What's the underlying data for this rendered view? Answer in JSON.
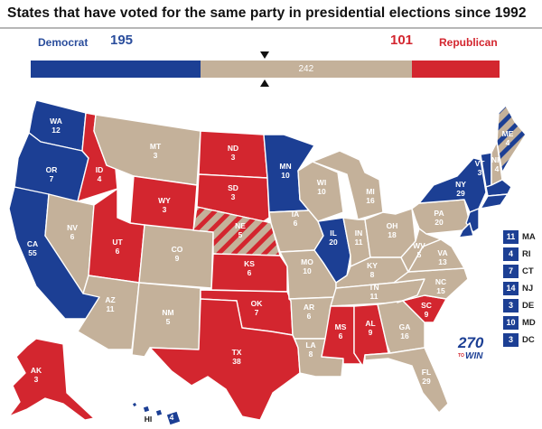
{
  "title": "States that have voted for the same party in presidential elections since 1992",
  "colors": {
    "democrat": "#1c3f94",
    "republican": "#d3262f",
    "neutral": "#c4b19a"
  },
  "summary": {
    "democrat_label": "Democrat",
    "democrat_votes": "195",
    "republican_votes": "101",
    "republican_label": "Republican",
    "neutral_votes": "242"
  },
  "bar": {
    "dem": 195,
    "neutral": 242,
    "rep": 101
  },
  "states": {
    "WA": {
      "name": "WA",
      "ev": "12",
      "party": "D"
    },
    "OR": {
      "name": "OR",
      "ev": "7",
      "party": "D"
    },
    "CA": {
      "name": "CA",
      "ev": "55",
      "party": "D"
    },
    "ID": {
      "name": "ID",
      "ev": "4",
      "party": "R"
    },
    "NV": {
      "name": "NV",
      "ev": "6",
      "party": "N"
    },
    "MT": {
      "name": "MT",
      "ev": "3",
      "party": "N"
    },
    "WY": {
      "name": "WY",
      "ev": "3",
      "party": "R"
    },
    "UT": {
      "name": "UT",
      "ev": "6",
      "party": "R"
    },
    "AZ": {
      "name": "AZ",
      "ev": "11",
      "party": "N"
    },
    "CO": {
      "name": "CO",
      "ev": "9",
      "party": "N"
    },
    "NM": {
      "name": "NM",
      "ev": "5",
      "party": "N"
    },
    "ND": {
      "name": "ND",
      "ev": "3",
      "party": "R"
    },
    "SD": {
      "name": "SD",
      "ev": "3",
      "party": "R"
    },
    "NE": {
      "name": "NE",
      "ev": "5",
      "party": "split"
    },
    "KS": {
      "name": "KS",
      "ev": "6",
      "party": "R"
    },
    "OK": {
      "name": "OK",
      "ev": "7",
      "party": "R"
    },
    "TX": {
      "name": "TX",
      "ev": "38",
      "party": "R"
    },
    "MN": {
      "name": "MN",
      "ev": "10",
      "party": "D"
    },
    "IA": {
      "name": "IA",
      "ev": "6",
      "party": "N"
    },
    "MO": {
      "name": "MO",
      "ev": "10",
      "party": "N"
    },
    "AR": {
      "name": "AR",
      "ev": "6",
      "party": "N"
    },
    "LA": {
      "name": "LA",
      "ev": "8",
      "party": "N"
    },
    "WI": {
      "name": "WI",
      "ev": "10",
      "party": "N"
    },
    "IL": {
      "name": "IL",
      "ev": "20",
      "party": "D"
    },
    "MI": {
      "name": "MI",
      "ev": "16",
      "party": "N"
    },
    "IN": {
      "name": "IN",
      "ev": "11",
      "party": "N"
    },
    "OH": {
      "name": "OH",
      "ev": "18",
      "party": "N"
    },
    "KY": {
      "name": "KY",
      "ev": "8",
      "party": "N"
    },
    "TN": {
      "name": "TN",
      "ev": "11",
      "party": "N"
    },
    "MS": {
      "name": "MS",
      "ev": "6",
      "party": "R"
    },
    "AL": {
      "name": "AL",
      "ev": "9",
      "party": "R"
    },
    "GA": {
      "name": "GA",
      "ev": "16",
      "party": "N"
    },
    "FL": {
      "name": "FL",
      "ev": "29",
      "party": "N"
    },
    "SC": {
      "name": "SC",
      "ev": "9",
      "party": "R"
    },
    "NC": {
      "name": "NC",
      "ev": "15",
      "party": "N"
    },
    "VA": {
      "name": "VA",
      "ev": "13",
      "party": "N"
    },
    "WV": {
      "name": "WV",
      "ev": "5",
      "party": "N"
    },
    "PA": {
      "name": "PA",
      "ev": "20",
      "party": "N"
    },
    "NY": {
      "name": "NY",
      "ev": "29",
      "party": "D"
    },
    "VT": {
      "name": "VT",
      "ev": "3",
      "party": "D"
    },
    "NH": {
      "name": "NH",
      "ev": "4",
      "party": "N"
    },
    "ME": {
      "name": "ME",
      "ev": "4",
      "party": "split"
    },
    "AK": {
      "name": "AK",
      "ev": "3",
      "party": "R"
    },
    "HI": {
      "name": "HI",
      "ev": "4",
      "party": "D"
    }
  },
  "small_states": [
    {
      "ev": "11",
      "abbr": "MA"
    },
    {
      "ev": "4",
      "abbr": "RI"
    },
    {
      "ev": "7",
      "abbr": "CT"
    },
    {
      "ev": "14",
      "abbr": "NJ"
    },
    {
      "ev": "3",
      "abbr": "DE"
    },
    {
      "ev": "10",
      "abbr": "MD"
    },
    {
      "ev": "3",
      "abbr": "DC"
    }
  ],
  "logo": {
    "number": "270",
    "to": "TO",
    "win": "WIN"
  }
}
